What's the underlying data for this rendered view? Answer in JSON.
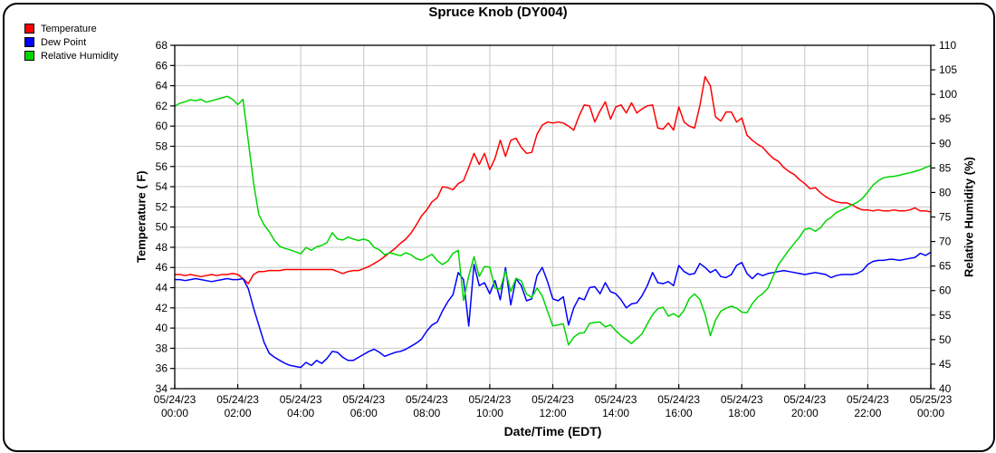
{
  "title": "Spruce Knob (DY004)",
  "legend": [
    {
      "label": "Temperature",
      "color": "#ff0000"
    },
    {
      "label": "Dew Point",
      "color": "#0000ff"
    },
    {
      "label": "Relative Humidity",
      "color": "#00d500"
    }
  ],
  "axes": {
    "left_label": "Temperature ( F)",
    "right_label": "Relative Humidity (%)",
    "x_label": "Date/Time (EDT)"
  },
  "chart_data": {
    "type": "line",
    "title": "Spruce Knob (DY004)",
    "xlabel": "Date/Time (EDT)",
    "ylabel_left": "Temperature ( F)",
    "ylabel_right": "Relative Humidity (%)",
    "grid": true,
    "legend_position": "top-left",
    "x_start": "05/24/23 00:00",
    "x_end": "05/25/23 00:00",
    "x_step_minutes": 10,
    "x_ticks": [
      {
        "date": "05/24/23",
        "time": "00:00"
      },
      {
        "date": "05/24/23",
        "time": "02:00"
      },
      {
        "date": "05/24/23",
        "time": "04:00"
      },
      {
        "date": "05/24/23",
        "time": "06:00"
      },
      {
        "date": "05/24/23",
        "time": "08:00"
      },
      {
        "date": "05/24/23",
        "time": "10:00"
      },
      {
        "date": "05/24/23",
        "time": "12:00"
      },
      {
        "date": "05/24/23",
        "time": "14:00"
      },
      {
        "date": "05/24/23",
        "time": "16:00"
      },
      {
        "date": "05/24/23",
        "time": "18:00"
      },
      {
        "date": "05/24/23",
        "time": "20:00"
      },
      {
        "date": "05/24/23",
        "time": "22:00"
      },
      {
        "date": "05/25/23",
        "time": "00:00"
      }
    ],
    "y_left": {
      "min": 34,
      "max": 68,
      "step": 2
    },
    "y_right": {
      "min": 40,
      "max": 110,
      "step": 5
    },
    "series": [
      {
        "name": "Temperature",
        "color": "#ff0000",
        "axis": "left",
        "values": [
          45.3,
          45.3,
          45.2,
          45.3,
          45.2,
          45.1,
          45.2,
          45.3,
          45.2,
          45.3,
          45.3,
          45.4,
          45.3,
          44.9,
          44.4,
          45.3,
          45.6,
          45.6,
          45.7,
          45.7,
          45.7,
          45.8,
          45.8,
          45.8,
          45.8,
          45.8,
          45.8,
          45.8,
          45.8,
          45.8,
          45.8,
          45.6,
          45.4,
          45.6,
          45.7,
          45.7,
          45.9,
          46.1,
          46.4,
          46.7,
          47.1,
          47.5,
          47.9,
          48.4,
          48.8,
          49.4,
          50.2,
          51.1,
          51.7,
          52.5,
          52.9,
          54.0,
          53.9,
          53.7,
          54.3,
          54.6,
          55.9,
          57.3,
          56.2,
          57.3,
          55.7,
          56.8,
          58.6,
          57.0,
          58.6,
          58.8,
          57.9,
          57.3,
          57.4,
          59.2,
          60.1,
          60.4,
          60.3,
          60.4,
          60.3,
          60.0,
          59.6,
          61.0,
          62.1,
          62.0,
          60.4,
          61.5,
          62.4,
          60.7,
          61.9,
          62.1,
          61.3,
          62.3,
          61.3,
          61.7,
          62.0,
          62.1,
          59.8,
          59.7,
          60.3,
          59.6,
          61.9,
          60.4,
          60.0,
          59.8,
          62.0,
          64.9,
          64.0,
          60.9,
          60.5,
          61.4,
          61.4,
          60.4,
          60.8,
          59.1,
          58.6,
          58.2,
          57.9,
          57.3,
          56.8,
          56.5,
          55.9,
          55.5,
          55.2,
          54.7,
          54.3,
          53.8,
          53.9,
          53.4,
          53.0,
          52.7,
          52.5,
          52.4,
          52.4,
          52.2,
          51.9,
          51.7,
          51.7,
          51.6,
          51.7,
          51.6,
          51.6,
          51.7,
          51.6,
          51.6,
          51.7,
          51.9,
          51.6,
          51.6,
          51.5
        ]
      },
      {
        "name": "Dew Point",
        "color": "#0000ff",
        "axis": "left",
        "values": [
          44.8,
          44.8,
          44.7,
          44.8,
          44.9,
          44.8,
          44.7,
          44.6,
          44.7,
          44.8,
          44.9,
          44.8,
          44.8,
          44.9,
          43.9,
          42.0,
          40.3,
          38.6,
          37.5,
          37.1,
          36.8,
          36.5,
          36.3,
          36.2,
          36.1,
          36.6,
          36.3,
          36.8,
          36.5,
          37.0,
          37.7,
          37.6,
          37.1,
          36.8,
          36.8,
          37.1,
          37.4,
          37.7,
          37.9,
          37.6,
          37.2,
          37.4,
          37.6,
          37.7,
          37.9,
          38.2,
          38.5,
          38.9,
          39.7,
          40.3,
          40.6,
          41.7,
          42.6,
          43.3,
          45.5,
          44.8,
          40.2,
          46.3,
          44.2,
          44.5,
          43.4,
          44.7,
          42.8,
          46.0,
          42.3,
          44.9,
          44.2,
          42.7,
          42.9,
          45.2,
          46.0,
          44.6,
          42.9,
          42.7,
          43.1,
          40.3,
          42.0,
          43.0,
          42.8,
          44.0,
          44.1,
          43.4,
          44.5,
          43.6,
          43.4,
          42.8,
          42.0,
          42.4,
          42.5,
          43.2,
          44.2,
          45.5,
          44.5,
          44.4,
          44.6,
          44.2,
          46.2,
          45.6,
          45.3,
          45.4,
          46.4,
          46.0,
          45.5,
          45.8,
          45.1,
          45.0,
          45.3,
          46.2,
          46.5,
          45.4,
          44.9,
          45.4,
          45.2,
          45.4,
          45.5,
          45.6,
          45.7,
          45.6,
          45.5,
          45.4,
          45.3,
          45.4,
          45.5,
          45.4,
          45.3,
          45.0,
          45.2,
          45.3,
          45.3,
          45.3,
          45.4,
          45.7,
          46.3,
          46.6,
          46.7,
          46.7,
          46.8,
          46.8,
          46.7,
          46.8,
          46.9,
          47.0,
          47.4,
          47.2,
          47.5
        ]
      },
      {
        "name": "Relative Humidity",
        "color": "#00d500",
        "axis": "right",
        "values": [
          97.6,
          98.2,
          98.5,
          98.9,
          98.7,
          99.0,
          98.4,
          98.7,
          99.0,
          99.3,
          99.6,
          99.0,
          97.9,
          99.0,
          90.5,
          82.0,
          75.5,
          73.4,
          72.0,
          70.2,
          69.0,
          68.6,
          68.3,
          67.9,
          67.5,
          68.8,
          68.2,
          68.9,
          69.2,
          69.8,
          71.8,
          70.5,
          70.3,
          70.9,
          70.5,
          70.2,
          70.5,
          70.1,
          68.8,
          68.3,
          67.3,
          67.7,
          67.4,
          67.1,
          67.7,
          67.3,
          66.5,
          66.2,
          66.8,
          67.4,
          66.1,
          65.3,
          66.0,
          67.6,
          68.2,
          58.0,
          63.0,
          66.9,
          62.9,
          64.9,
          64.8,
          60.5,
          60.3,
          64.0,
          59.8,
          62.5,
          62.0,
          59.3,
          58.6,
          60.5,
          58.9,
          55.8,
          52.8,
          53.0,
          53.2,
          48.9,
          50.5,
          51.3,
          51.4,
          53.3,
          53.5,
          53.6,
          52.6,
          53.0,
          51.8,
          50.8,
          50.0,
          49.2,
          50.2,
          51.2,
          53.2,
          55.1,
          56.3,
          56.6,
          54.8,
          55.3,
          54.6,
          56.0,
          58.4,
          59.3,
          58.2,
          55.2,
          50.8,
          54.0,
          55.8,
          56.4,
          56.8,
          56.4,
          55.6,
          55.5,
          57.3,
          58.6,
          59.4,
          60.5,
          63.0,
          65.3,
          66.8,
          68.3,
          69.6,
          70.9,
          72.5,
          72.7,
          72.1,
          72.8,
          74.2,
          74.9,
          75.9,
          76.4,
          76.9,
          77.5,
          78.0,
          78.8,
          80.1,
          81.5,
          82.4,
          83.0,
          83.2,
          83.3,
          83.5,
          83.8,
          84.0,
          84.3,
          84.6,
          85.1,
          85.5
        ]
      }
    ]
  }
}
